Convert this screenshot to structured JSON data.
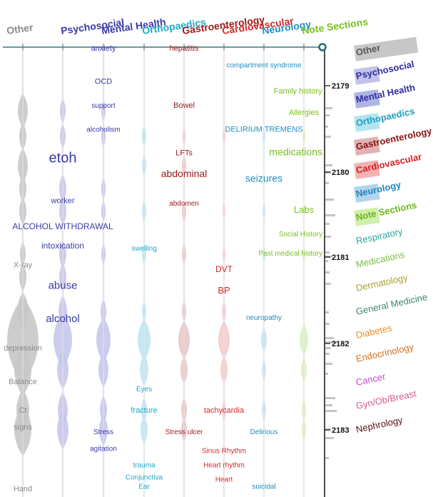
{
  "chart_data": {
    "type": "streamgraph-word-cloud",
    "columns": [
      {
        "name": "Other",
        "color": "#8a8a8a"
      },
      {
        "name": "Psychosocial",
        "color": "#3a3aa8"
      },
      {
        "name": "Mental Health",
        "color": "#3a3aa8"
      },
      {
        "name": "Orthopaedics",
        "color": "#1fa8c8"
      },
      {
        "name": "Gastroenterology",
        "color": "#9a1a1a"
      },
      {
        "name": "Cardiovascular",
        "color": "#d42a2a"
      },
      {
        "name": "Neurology",
        "color": "#1f8ec0"
      },
      {
        "name": "Note Sections",
        "color": "#7ac11c"
      }
    ],
    "y_ticks": [
      2179,
      2180,
      2181,
      2182,
      2183
    ],
    "ylim": [
      2178.2,
      2183.6
    ],
    "legend": [
      {
        "name": "Other",
        "color": "#555555",
        "swatch": "#bdbdbd"
      },
      {
        "name": "Psychosocial",
        "color": "#2d2da0",
        "swatch": "#b9b9e6"
      },
      {
        "name": "Mental Health",
        "color": "#2d2da0",
        "swatch": "#9fa8dd"
      },
      {
        "name": "Orthopaedics",
        "color": "#1aa0c2",
        "swatch": "#a6e0ef"
      },
      {
        "name": "Gastroenterology",
        "color": "#8a1010",
        "swatch": "#d9a6a6"
      },
      {
        "name": "Cardiovascular",
        "color": "#d42020",
        "swatch": "#f2a6a6"
      },
      {
        "name": "Neurology",
        "color": "#1a86c0",
        "swatch": "#a6cdea"
      },
      {
        "name": "Note Sections",
        "color": "#6ab818",
        "swatch": "#c9ec9c"
      },
      {
        "name": "Respiratory",
        "color": "#2aa89a",
        "swatch": ""
      },
      {
        "name": "Medications",
        "color": "#78c040",
        "swatch": ""
      },
      {
        "name": "Dermatology",
        "color": "#a8a030",
        "swatch": ""
      },
      {
        "name": "General Medicine",
        "color": "#3a8a6a",
        "swatch": ""
      },
      {
        "name": "Diabetes",
        "color": "#e8902a",
        "swatch": ""
      },
      {
        "name": "Endocrinology",
        "color": "#d8701a",
        "swatch": ""
      },
      {
        "name": "Cancer",
        "color": "#c848c8",
        "swatch": ""
      },
      {
        "name": "Gyn/Ob/Breast",
        "color": "#d85890",
        "swatch": ""
      },
      {
        "name": "Nephrology",
        "color": "#5a1010",
        "swatch": ""
      }
    ],
    "words": [
      {
        "text": "anxiety",
        "col": 2,
        "y": 2178.2,
        "size": 11
      },
      {
        "text": "hepatitis",
        "col": 4,
        "y": 2178.2,
        "size": 11
      },
      {
        "text": "compartment syndrome",
        "col": 6,
        "y": 2178.55,
        "size": 10
      },
      {
        "text": "OCD",
        "col": 2,
        "y": 2178.9,
        "size": 11
      },
      {
        "text": "Family history",
        "col": 7,
        "y": 2179.1,
        "size": 11
      },
      {
        "text": "support",
        "col": 2,
        "y": 2179.4,
        "size": 10
      },
      {
        "text": "Bowel",
        "col": 4,
        "y": 2179.4,
        "size": 11
      },
      {
        "text": "Allergies",
        "col": 7,
        "y": 2179.55,
        "size": 11
      },
      {
        "text": "alcoholism",
        "col": 2,
        "y": 2179.9,
        "size": 10
      },
      {
        "text": "DELIRIUM TREMENS",
        "col": 6,
        "y": 2179.9,
        "size": 11
      },
      {
        "text": "LFTs",
        "col": 4,
        "y": 2180.4,
        "size": 11
      },
      {
        "text": "medications",
        "col": 7,
        "y": 2180.4,
        "size": 14
      },
      {
        "text": "etoh",
        "col": 1,
        "y": 2180.55,
        "size": 20
      },
      {
        "text": "abdominal",
        "col": 4,
        "y": 2180.85,
        "size": 14
      },
      {
        "text": "seizures",
        "col": 6,
        "y": 2180.95,
        "size": 14
      },
      {
        "text": "worker",
        "col": 1,
        "y": 2181.4,
        "size": 11
      },
      {
        "text": "abdomen",
        "col": 4,
        "y": 2181.45,
        "size": 10
      },
      {
        "text": "Labs",
        "col": 7,
        "y": 2181.6,
        "size": 13
      },
      {
        "text": "ALCOHOL WITHDRAWAL",
        "col": 1,
        "y": 2181.95,
        "size": 12
      },
      {
        "text": "Social History",
        "col": 7,
        "y": 2182.1,
        "size": 10
      },
      {
        "text": "intoxication",
        "col": 1,
        "y": 2182.35,
        "size": 12
      },
      {
        "text": "swelling",
        "col": 3,
        "y": 2182.4,
        "size": 10
      },
      {
        "text": "Past medical history",
        "col": 7,
        "y": 2182.5,
        "size": 10
      },
      {
        "text": "X-ray",
        "col": 0,
        "y": 2182.75,
        "size": 11
      },
      {
        "text": "DVT",
        "col": 5,
        "y": 2182.85,
        "size": 12
      },
      {
        "text": "abuse",
        "col": 1,
        "y": 2183.2,
        "size": 15
      },
      {
        "text": "BP",
        "col": 5,
        "y": 2183.3,
        "size": 13
      },
      {
        "text": "neuropathy",
        "col": 6,
        "y": 2183.85,
        "size": 10
      },
      {
        "text": "alcohol",
        "col": 1,
        "y": 2183.9,
        "size": 15
      },
      {
        "text": "depression",
        "col": 0,
        "y": 2184.5,
        "size": 11
      },
      {
        "text": "Balance",
        "col": 0,
        "y": 2185.2,
        "size": 11
      },
      {
        "text": "Eyes",
        "col": 3,
        "y": 2185.35,
        "size": 10
      },
      {
        "text": "Ct",
        "col": 0,
        "y": 2185.8,
        "size": 11
      },
      {
        "text": "fracture",
        "col": 3,
        "y": 2185.8,
        "size": 11
      },
      {
        "text": "tachycardia",
        "col": 5,
        "y": 2185.8,
        "size": 11
      },
      {
        "text": "signs",
        "col": 0,
        "y": 2186.15,
        "size": 11
      },
      {
        "text": "Stress",
        "col": 2,
        "y": 2186.25,
        "size": 10
      },
      {
        "text": "Stress ulcer",
        "col": 4,
        "y": 2186.25,
        "size": 10
      },
      {
        "text": "Delirious",
        "col": 6,
        "y": 2186.25,
        "size": 10
      },
      {
        "text": "agitation",
        "col": 2,
        "y": 2186.6,
        "size": 10
      },
      {
        "text": "Sinus Rhythm",
        "col": 5,
        "y": 2186.65,
        "size": 10
      },
      {
        "text": "trauma",
        "col": 3,
        "y": 2186.95,
        "size": 10
      },
      {
        "text": "Heart rhythm",
        "col": 5,
        "y": 2186.95,
        "size": 10
      },
      {
        "text": "Conjunctiva",
        "col": 3,
        "y": 2187.2,
        "size": 10
      },
      {
        "text": "Heart",
        "col": 5,
        "y": 2187.25,
        "size": 10
      },
      {
        "text": "Ear",
        "col": 3,
        "y": 2187.4,
        "size": 10
      },
      {
        "text": "suicidal",
        "col": 6,
        "y": 2187.4,
        "size": 10
      },
      {
        "text": "Hand",
        "col": 0,
        "y": 2187.45,
        "size": 11
      }
    ]
  }
}
